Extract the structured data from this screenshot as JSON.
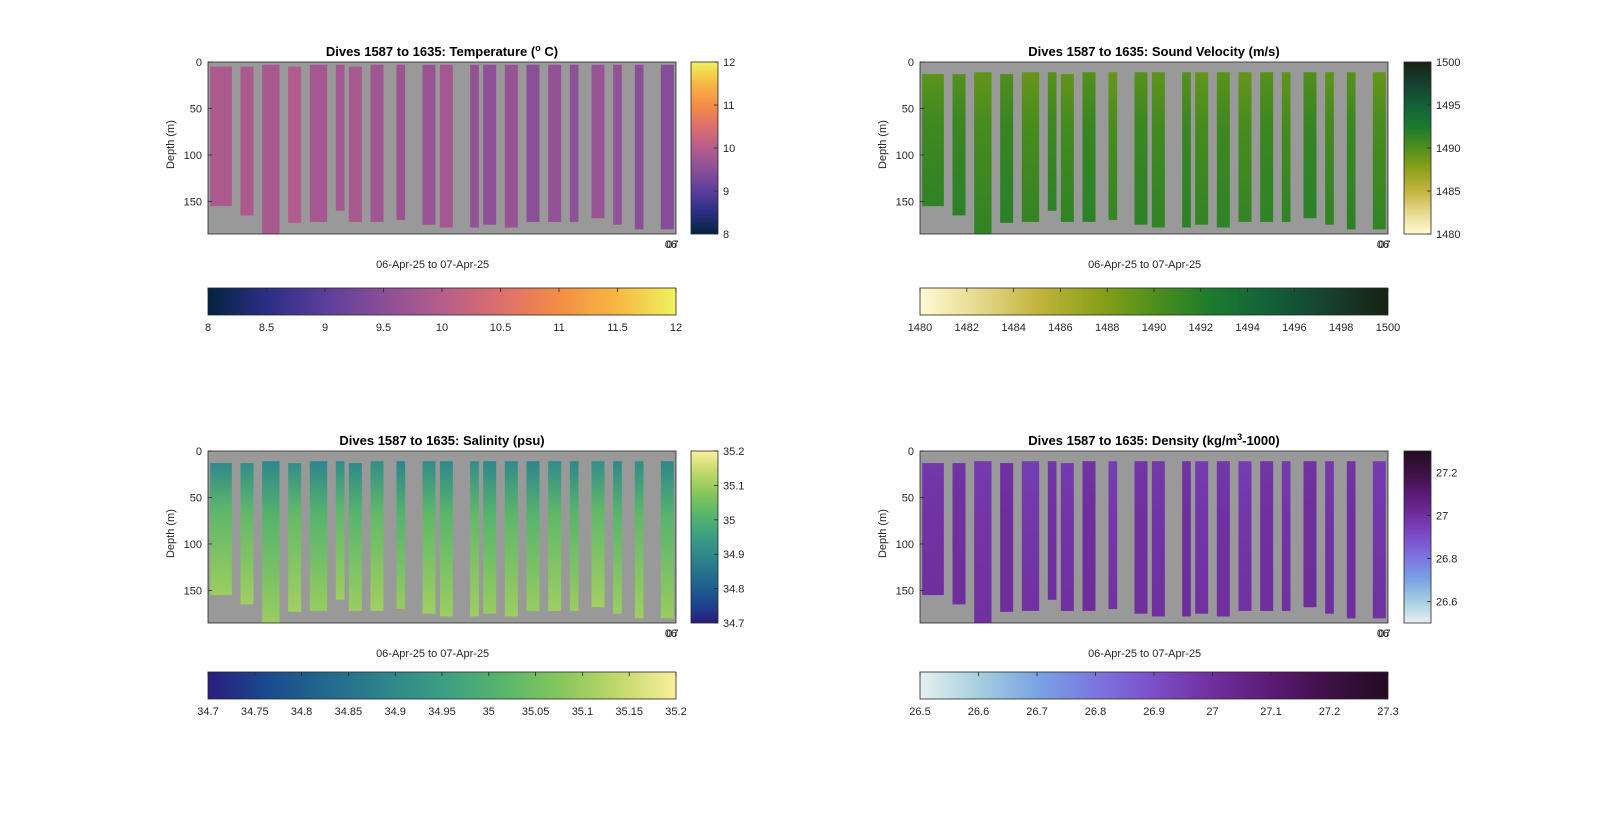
{
  "chart_data": [
    {
      "type": "heatmap",
      "title": "Dives 1587 to 1635: Temperature (",
      "title_sup": "o",
      "title_suffix": " C)",
      "xlabel": "06-Apr-25 to 07-Apr-25",
      "x_tick_labels": [
        "06",
        "07"
      ],
      "ylabel": "Depth (m)",
      "ylim": [
        0,
        185
      ],
      "y_ticks": [
        0,
        50,
        100,
        150
      ],
      "background_color": "#999999",
      "colormap": "thermal",
      "colorbar_range": [
        8,
        12
      ],
      "side_colorbar_ticks": [
        "8",
        "9",
        "10",
        "11",
        "12"
      ],
      "bottom_colorbar_ticks": [
        "8",
        "8.5",
        "9",
        "9.5",
        "10",
        "10.5",
        "11",
        "11.5",
        "12"
      ],
      "dive_values": [
        9.9,
        9.9,
        9.85,
        9.95,
        9.8,
        9.8,
        9.85,
        9.75,
        9.7,
        9.65,
        9.8,
        9.6,
        9.55,
        9.65,
        9.5,
        9.6,
        9.55,
        9.65,
        9.6,
        9.5,
        9.45
      ]
    },
    {
      "type": "heatmap",
      "title": "Dives 1587 to 1635: Sound Velocity (m/s)",
      "xlabel": "06-Apr-25 to 07-Apr-25",
      "x_tick_labels": [
        "06",
        "07"
      ],
      "ylabel": "Depth (m)",
      "ylim": [
        0,
        185
      ],
      "y_ticks": [
        0,
        50,
        100,
        150
      ],
      "background_color": "#999999",
      "colormap": "speed",
      "colorbar_range": [
        1480,
        1500
      ],
      "side_colorbar_ticks": [
        "1480",
        "1485",
        "1490",
        "1495",
        "1500"
      ],
      "bottom_colorbar_ticks": [
        "1480",
        "1482",
        "1484",
        "1486",
        "1488",
        "1490",
        "1492",
        "1494",
        "1496",
        "1498",
        "1500"
      ],
      "surface_value": 1489.5,
      "bottom_value": 1491.5
    },
    {
      "type": "heatmap",
      "title": "Dives 1587 to 1635: Salinity (psu)",
      "xlabel": "06-Apr-25 to 07-Apr-25",
      "x_tick_labels": [
        "06",
        "07"
      ],
      "ylabel": "Depth (m)",
      "ylim": [
        0,
        185
      ],
      "y_ticks": [
        0,
        50,
        100,
        150
      ],
      "background_color": "#999999",
      "colormap": "haline",
      "colorbar_range": [
        34.7,
        35.2
      ],
      "side_colorbar_ticks": [
        "34.7",
        "34.8",
        "34.9",
        "35",
        "35.1",
        "35.2"
      ],
      "bottom_colorbar_ticks": [
        "34.7",
        "34.75",
        "34.8",
        "34.85",
        "34.9",
        "34.95",
        "35",
        "35.05",
        "35.1",
        "35.15",
        "35.2"
      ],
      "surface_value": 34.9,
      "bottom_value": 35.1
    },
    {
      "type": "heatmap",
      "title": "Dives 1587 to 1635: Density (kg/m",
      "title_sup": "3",
      "title_suffix": "-1000)",
      "xlabel": "06-Apr-25 to 07-Apr-25",
      "x_tick_labels": [
        "06",
        "07"
      ],
      "ylabel": "Depth (m)",
      "ylim": [
        0,
        185
      ],
      "y_ticks": [
        0,
        50,
        100,
        150
      ],
      "background_color": "#999999",
      "colormap": "dense",
      "colorbar_range": [
        26.5,
        27.3
      ],
      "side_colorbar_ticks": [
        "26.6",
        "26.8",
        "27",
        "27.2"
      ],
      "side_colorbar_range": [
        26.5,
        27.3
      ],
      "bottom_colorbar_ticks": [
        "26.5",
        "26.6",
        "26.7",
        "26.8",
        "26.9",
        "27",
        "27.1",
        "27.2",
        "27.3"
      ],
      "surface_value": 26.97,
      "bottom_value": 27.0
    }
  ],
  "dive_columns": [
    {
      "start": 0.5,
      "end": 5.5,
      "top": 5,
      "bottom": 155
    },
    {
      "start": 7.5,
      "end": 10.5,
      "top": 5,
      "bottom": 165
    },
    {
      "start": 12.5,
      "end": 16.5,
      "top": 3,
      "bottom": 185
    },
    {
      "start": 18.5,
      "end": 21.5,
      "top": 5,
      "bottom": 173
    },
    {
      "start": 23.5,
      "end": 27.5,
      "top": 3,
      "bottom": 172
    },
    {
      "start": 29.5,
      "end": 31.5,
      "top": 3,
      "bottom": 160
    },
    {
      "start": 32.5,
      "end": 35.5,
      "top": 5,
      "bottom": 172
    },
    {
      "start": 37.5,
      "end": 40.5,
      "top": 3,
      "bottom": 172
    },
    {
      "start": 43.5,
      "end": 45.5,
      "top": 3,
      "bottom": 170
    },
    {
      "start": 49.5,
      "end": 52.5,
      "top": 3,
      "bottom": 175
    },
    {
      "start": 53.5,
      "end": 56.5,
      "top": 3,
      "bottom": 178
    },
    {
      "start": 60.5,
      "end": 62.5,
      "top": 3,
      "bottom": 178
    },
    {
      "start": 63.5,
      "end": 66.5,
      "top": 3,
      "bottom": 175
    },
    {
      "start": 68.5,
      "end": 71.5,
      "top": 3,
      "bottom": 178
    },
    {
      "start": 73.5,
      "end": 76.5,
      "top": 3,
      "bottom": 172
    },
    {
      "start": 78.5,
      "end": 81.5,
      "top": 3,
      "bottom": 172
    },
    {
      "start": 83.5,
      "end": 85.5,
      "top": 3,
      "bottom": 172
    },
    {
      "start": 88.5,
      "end": 91.5,
      "top": 3,
      "bottom": 168
    },
    {
      "start": 93.5,
      "end": 95.5,
      "top": 3,
      "bottom": 175
    },
    {
      "start": 98.5,
      "end": 100.5,
      "top": 3,
      "bottom": 180
    },
    {
      "start": 104.5,
      "end": 107.5,
      "top": 3,
      "bottom": 180
    }
  ]
}
